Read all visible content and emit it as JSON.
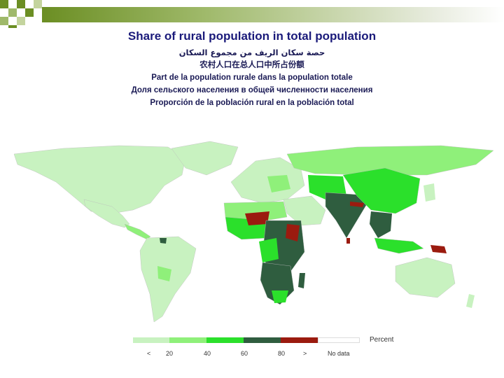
{
  "title": {
    "main": "Share of rural population in total population",
    "arabic": "حصة سكان الريف من مجموع السكان",
    "chinese": "农村人口在总人口中所占份额",
    "french": "Part de la population rurale dans la population totale",
    "russian": "Доля сельского населения в общей численности населения",
    "spanish": "Proporción de la población rural en la población total"
  },
  "legend": {
    "unit": "Percent",
    "labels": [
      "<",
      "20",
      "40",
      "60",
      "80",
      ">",
      "No data"
    ],
    "classes": [
      {
        "label": "< 20",
        "color": "#c8f2c0"
      },
      {
        "label": "20–40",
        "color": "#8ff07a"
      },
      {
        "label": "40–60",
        "color": "#2be02b"
      },
      {
        "label": "60–80",
        "color": "#2f5d3f"
      },
      {
        "label": "> 80",
        "color": "#9b1b0f"
      },
      {
        "label": "No data",
        "color": "#ffffff"
      }
    ]
  },
  "colors": {
    "ocean": "#ffffff",
    "under20": "#c8f2c0",
    "20to40": "#8ff07a",
    "40to60": "#2be02b",
    "60to80": "#2f5d3f",
    "over80": "#9b1b0f",
    "nodata": "#ffffff"
  }
}
